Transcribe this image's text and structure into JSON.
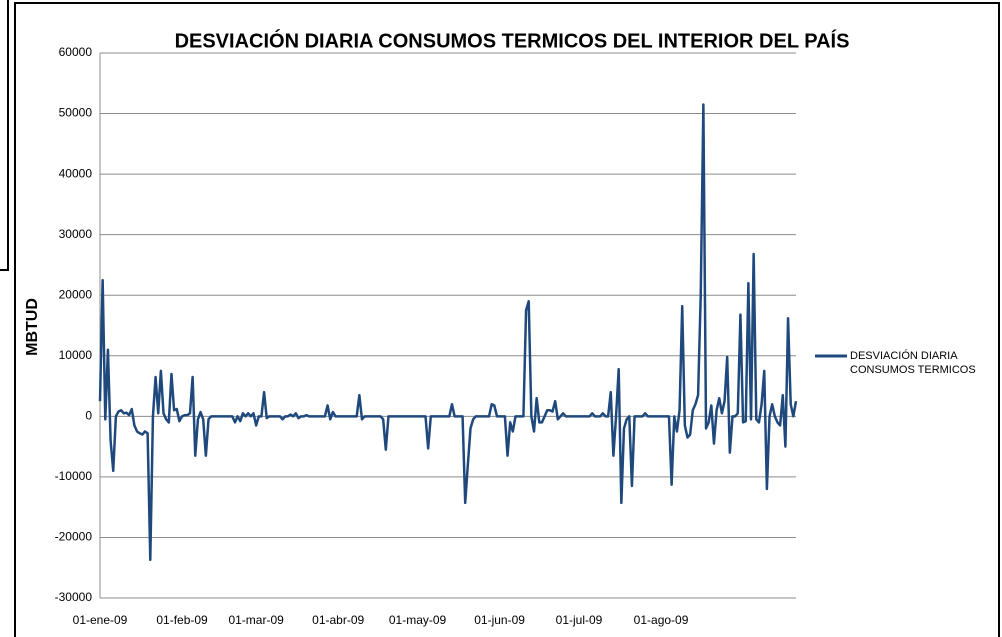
{
  "chart_data": {
    "type": "line",
    "title": "DESVIACIÓN DIARIA CONSUMOS TERMICOS DEL INTERIOR DEL PAÍS",
    "y_label": "MBTUD",
    "categories": [
      "01-ene-09",
      null,
      null,
      null,
      null,
      null,
      null,
      null,
      null,
      null,
      null,
      null,
      null,
      null,
      null,
      null,
      null,
      null,
      null,
      null,
      null,
      null,
      null,
      null,
      null,
      null,
      null,
      null,
      null,
      null,
      null,
      "01-feb-09",
      null,
      null,
      null,
      null,
      null,
      null,
      null,
      null,
      null,
      null,
      null,
      null,
      null,
      null,
      null,
      null,
      null,
      null,
      null,
      null,
      null,
      null,
      null,
      null,
      null,
      null,
      null,
      "01-mar-09",
      null,
      null,
      null,
      null,
      null,
      null,
      null,
      null,
      null,
      null,
      null,
      null,
      null,
      null,
      null,
      null,
      null,
      null,
      null,
      null,
      null,
      null,
      null,
      null,
      null,
      null,
      null,
      null,
      null,
      null,
      "01-abr-09",
      null,
      null,
      null,
      null,
      null,
      null,
      null,
      null,
      null,
      null,
      null,
      null,
      null,
      null,
      null,
      null,
      null,
      null,
      null,
      null,
      null,
      null,
      null,
      null,
      null,
      null,
      null,
      null,
      null,
      "01-may-09",
      null,
      null,
      null,
      null,
      null,
      null,
      null,
      null,
      null,
      null,
      null,
      null,
      null,
      null,
      null,
      null,
      null,
      null,
      null,
      null,
      null,
      null,
      null,
      null,
      null,
      null,
      null,
      null,
      null,
      null,
      "01-jun-09",
      null,
      null,
      null,
      null,
      null,
      null,
      null,
      null,
      null,
      null,
      null,
      null,
      null,
      null,
      null,
      null,
      null,
      null,
      null,
      null,
      null,
      null,
      null,
      null,
      null,
      null,
      null,
      null,
      null,
      "01-jul-09",
      null,
      null,
      null,
      null,
      null,
      null,
      null,
      null,
      null,
      null,
      null,
      null,
      null,
      null,
      null,
      null,
      null,
      null,
      null,
      null,
      null,
      null,
      null,
      null,
      null,
      null,
      null,
      null,
      null,
      null,
      "01-ago-09",
      null,
      null,
      null,
      null,
      null,
      null,
      null,
      null,
      null,
      null,
      null,
      null,
      null,
      null,
      null,
      null,
      null,
      null,
      null,
      null,
      null,
      null,
      null,
      null,
      null,
      null,
      null,
      null,
      null,
      null,
      null,
      null,
      null,
      null,
      null,
      null,
      null,
      null,
      null,
      null,
      null,
      null,
      null,
      null,
      null,
      null,
      null,
      null,
      null,
      null,
      null
    ],
    "series": [
      {
        "name": "DESVIACIÓN DIARIA CONSUMOS TERMICOS",
        "color": "#1f497d",
        "values": [
          2500,
          22500,
          -500,
          11000,
          -4000,
          -9000,
          0,
          800,
          1000,
          500,
          600,
          200,
          1200,
          -1500,
          -2500,
          -2800,
          -3000,
          -2500,
          -2800,
          -23700,
          0,
          6500,
          500,
          7500,
          500,
          -500,
          -1000,
          7000,
          1000,
          1200,
          -800,
          0,
          200,
          200,
          500,
          6500,
          -6500,
          -500,
          700,
          -500,
          -6500,
          -500,
          0,
          0,
          0,
          0,
          0,
          0,
          0,
          0,
          0,
          -1000,
          0,
          -800,
          500,
          0,
          500,
          0,
          500,
          -1500,
          0,
          0,
          4000,
          -300,
          0,
          0,
          0,
          0,
          0,
          -500,
          0,
          0,
          300,
          0,
          500,
          -300,
          0,
          0,
          200,
          0,
          0,
          0,
          0,
          0,
          0,
          0,
          1800,
          -500,
          700,
          0,
          0,
          0,
          0,
          0,
          0,
          0,
          0,
          0,
          3500,
          -500,
          0,
          0,
          0,
          0,
          0,
          0,
          0,
          -500,
          -5500,
          0,
          0,
          0,
          0,
          0,
          0,
          0,
          0,
          0,
          0,
          0,
          0,
          0,
          0,
          0,
          -5300,
          0,
          0,
          0,
          0,
          0,
          0,
          0,
          0,
          2000,
          0,
          0,
          0,
          0,
          -14300,
          -8000,
          -2000,
          -500,
          0,
          0,
          0,
          0,
          0,
          0,
          2000,
          1800,
          0,
          0,
          0,
          0,
          -6500,
          -1000,
          -2500,
          0,
          0,
          0,
          0,
          17500,
          19000,
          0,
          -2500,
          3000,
          -1000,
          -1000,
          0,
          1000,
          1000,
          800,
          2500,
          -500,
          0,
          500,
          0,
          0,
          0,
          0,
          0,
          0,
          0,
          0,
          0,
          0,
          500,
          0,
          0,
          0,
          500,
          0,
          0,
          4000,
          -6500,
          0,
          7800,
          -14300,
          -2000,
          -500,
          0,
          -11500,
          0,
          0,
          0,
          0,
          500,
          0,
          0,
          0,
          0,
          0,
          0,
          0,
          0,
          0,
          -11300,
          0,
          -2500,
          1000,
          18200,
          -1500,
          -3500,
          -3000,
          1000,
          2000,
          3500,
          20000,
          51500,
          -2000,
          -1000,
          1800,
          -4500,
          1000,
          3000,
          500,
          2500,
          9800,
          -6000,
          0,
          0,
          500,
          16800,
          -1000,
          -800,
          22000,
          -500,
          26800,
          -500,
          -1000,
          2000,
          7500,
          -12000,
          0,
          2000,
          0,
          -1000,
          -1500,
          3500,
          -5000,
          16200,
          2000,
          0,
          2500
        ]
      }
    ],
    "ylim": [
      -30000,
      60000
    ],
    "yticks": [
      -30000,
      -20000,
      -10000,
      0,
      10000,
      20000,
      30000,
      40000,
      50000,
      60000
    ],
    "grid": true,
    "legend": "right"
  }
}
